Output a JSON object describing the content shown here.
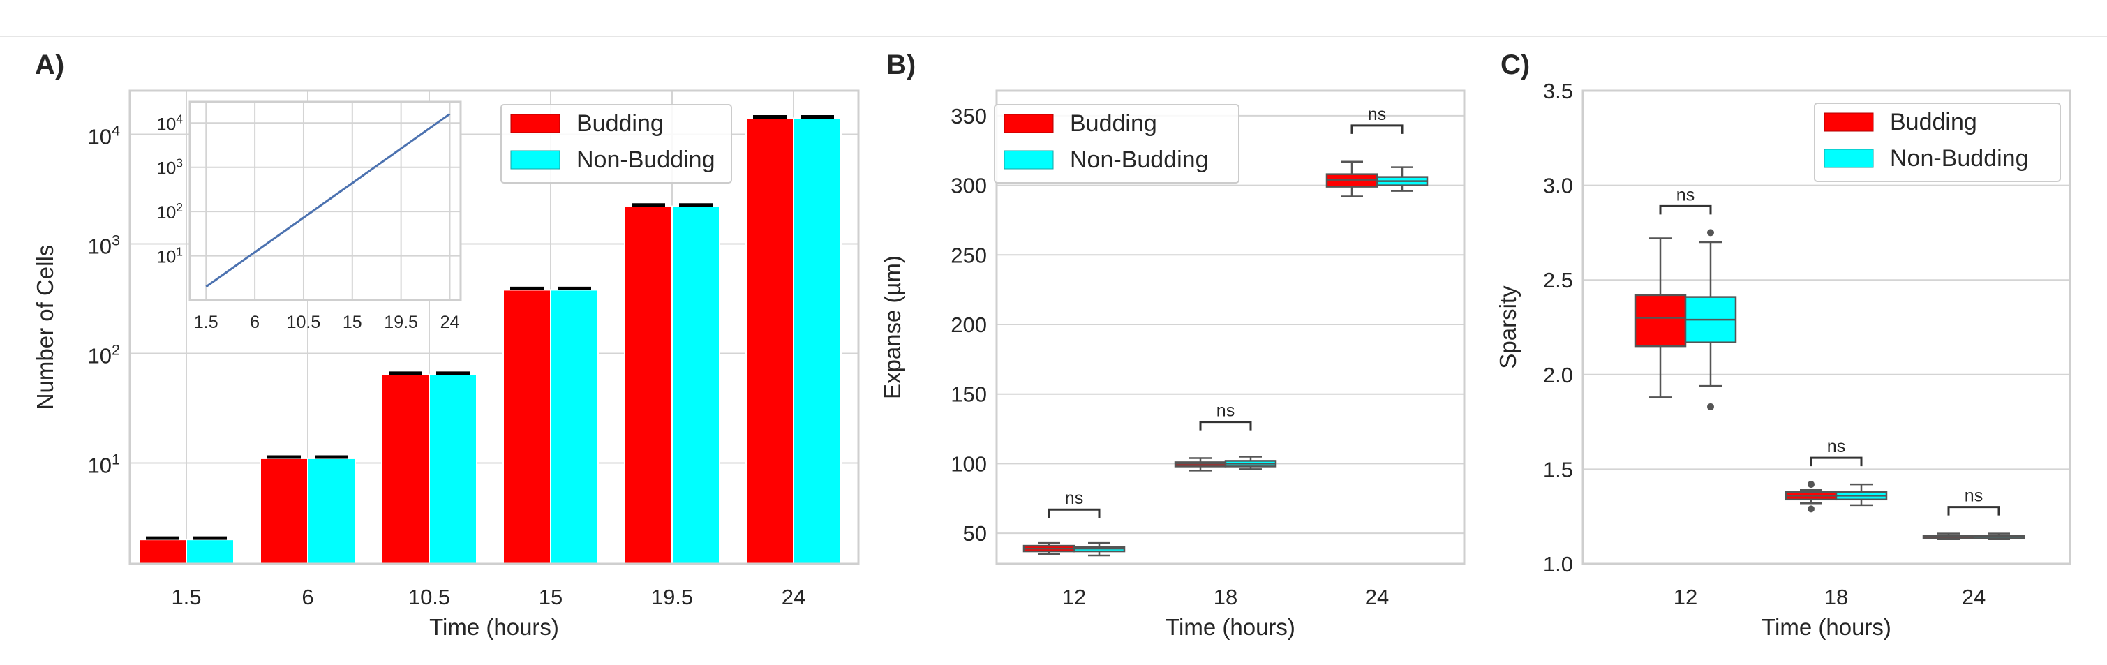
{
  "colors": {
    "budding": "#ff0000",
    "non_budding": "#00ffff",
    "grid": "#d4d4d4",
    "spine": "#cfcfcf",
    "text": "#262626",
    "box_line": "#555555",
    "inset_line": "#4c72b0"
  },
  "chart_data": [
    {
      "id": "A",
      "panel_label": "A)",
      "type": "bar",
      "yscale": "log",
      "title": "",
      "xlabel": "Time (hours)",
      "ylabel": "Number of Cells",
      "categories": [
        "1.5",
        "6",
        "10.5",
        "15",
        "19.5",
        "24"
      ],
      "ylim": [
        1.2,
        25000
      ],
      "yticks": [
        {
          "exp": 1
        },
        {
          "exp": 2
        },
        {
          "exp": 3
        },
        {
          "exp": 4
        }
      ],
      "series": [
        {
          "name": "Budding",
          "values": [
            2,
            11,
            64,
            380,
            2200,
            14000
          ]
        },
        {
          "name": "Non-Budding",
          "values": [
            2,
            11,
            64,
            380,
            2200,
            14000
          ]
        }
      ],
      "legend": {
        "position": "top-right",
        "entries": [
          "Budding",
          "Non-Budding"
        ]
      },
      "inset": {
        "type": "line",
        "yscale": "log",
        "x": [
          1.5,
          24
        ],
        "y": [
          2,
          16000
        ],
        "xticks": [
          "1.5",
          "6",
          "10.5",
          "15",
          "19.5",
          "24"
        ],
        "yticks": [
          {
            "exp": 1
          },
          {
            "exp": 2
          },
          {
            "exp": 3
          },
          {
            "exp": 4
          }
        ],
        "xlim": [
          0,
          25
        ],
        "ylim": [
          1,
          30000
        ]
      }
    },
    {
      "id": "B",
      "panel_label": "B)",
      "type": "box",
      "title": "",
      "xlabel": "Time (hours)",
      "ylabel": "Expanse (µm)",
      "categories": [
        "12",
        "18",
        "24"
      ],
      "ylim": [
        28,
        368
      ],
      "yticks": [
        "50",
        "100",
        "150",
        "200",
        "250",
        "300",
        "350"
      ],
      "series": [
        {
          "name": "Budding",
          "boxes": [
            {
              "whislo": 35,
              "q1": 37,
              "med": 39,
              "q3": 41,
              "whishi": 43,
              "fliers": []
            },
            {
              "whislo": 95,
              "q1": 98,
              "med": 100,
              "q3": 101,
              "whishi": 104,
              "fliers": []
            },
            {
              "whislo": 292,
              "q1": 299,
              "med": 304,
              "q3": 308,
              "whishi": 317,
              "fliers": []
            }
          ]
        },
        {
          "name": "Non-Budding",
          "boxes": [
            {
              "whislo": 34,
              "q1": 37,
              "med": 39,
              "q3": 40,
              "whishi": 43,
              "fliers": []
            },
            {
              "whislo": 96,
              "q1": 98,
              "med": 100,
              "q3": 102,
              "whishi": 105,
              "fliers": []
            },
            {
              "whislo": 296,
              "q1": 300,
              "med": 303,
              "q3": 306,
              "whishi": 313,
              "fliers": []
            }
          ]
        }
      ],
      "significance": [
        {
          "category": "12",
          "label": "ns",
          "y": 67
        },
        {
          "category": "18",
          "label": "ns",
          "y": 130
        },
        {
          "category": "24",
          "label": "ns",
          "y": 343
        }
      ],
      "legend": {
        "position": "top-left",
        "entries": [
          "Budding",
          "Non-Budding"
        ]
      }
    },
    {
      "id": "C",
      "panel_label": "C)",
      "type": "box",
      "title": "",
      "xlabel": "Time (hours)",
      "ylabel": "Sparsity",
      "categories": [
        "12",
        "18",
        "24"
      ],
      "ylim": [
        1.0,
        3.5
      ],
      "yticks": [
        "1.0",
        "1.5",
        "2.0",
        "2.5",
        "3.0",
        "3.5"
      ],
      "series": [
        {
          "name": "Budding",
          "boxes": [
            {
              "whislo": 1.88,
              "q1": 2.15,
              "med": 2.3,
              "q3": 2.42,
              "whishi": 2.72,
              "fliers": []
            },
            {
              "whislo": 1.32,
              "q1": 1.34,
              "med": 1.36,
              "q3": 1.38,
              "whishi": 1.39,
              "fliers": [
                1.29,
                1.42
              ]
            },
            {
              "whislo": 1.13,
              "q1": 1.14,
              "med": 1.145,
              "q3": 1.15,
              "whishi": 1.16,
              "fliers": []
            }
          ]
        },
        {
          "name": "Non-Budding",
          "boxes": [
            {
              "whislo": 1.94,
              "q1": 2.17,
              "med": 2.29,
              "q3": 2.41,
              "whishi": 2.7,
              "fliers": [
                1.83,
                2.75
              ]
            },
            {
              "whislo": 1.31,
              "q1": 1.34,
              "med": 1.36,
              "q3": 1.38,
              "whishi": 1.42,
              "fliers": []
            },
            {
              "whislo": 1.13,
              "q1": 1.14,
              "med": 1.145,
              "q3": 1.15,
              "whishi": 1.16,
              "fliers": []
            }
          ]
        }
      ],
      "significance": [
        {
          "category": "12",
          "label": "ns",
          "y": 2.89
        },
        {
          "category": "18",
          "label": "ns",
          "y": 1.56
        },
        {
          "category": "24",
          "label": "ns",
          "y": 1.3
        }
      ],
      "legend": {
        "position": "top-right",
        "entries": [
          "Budding",
          "Non-Budding"
        ]
      }
    }
  ]
}
